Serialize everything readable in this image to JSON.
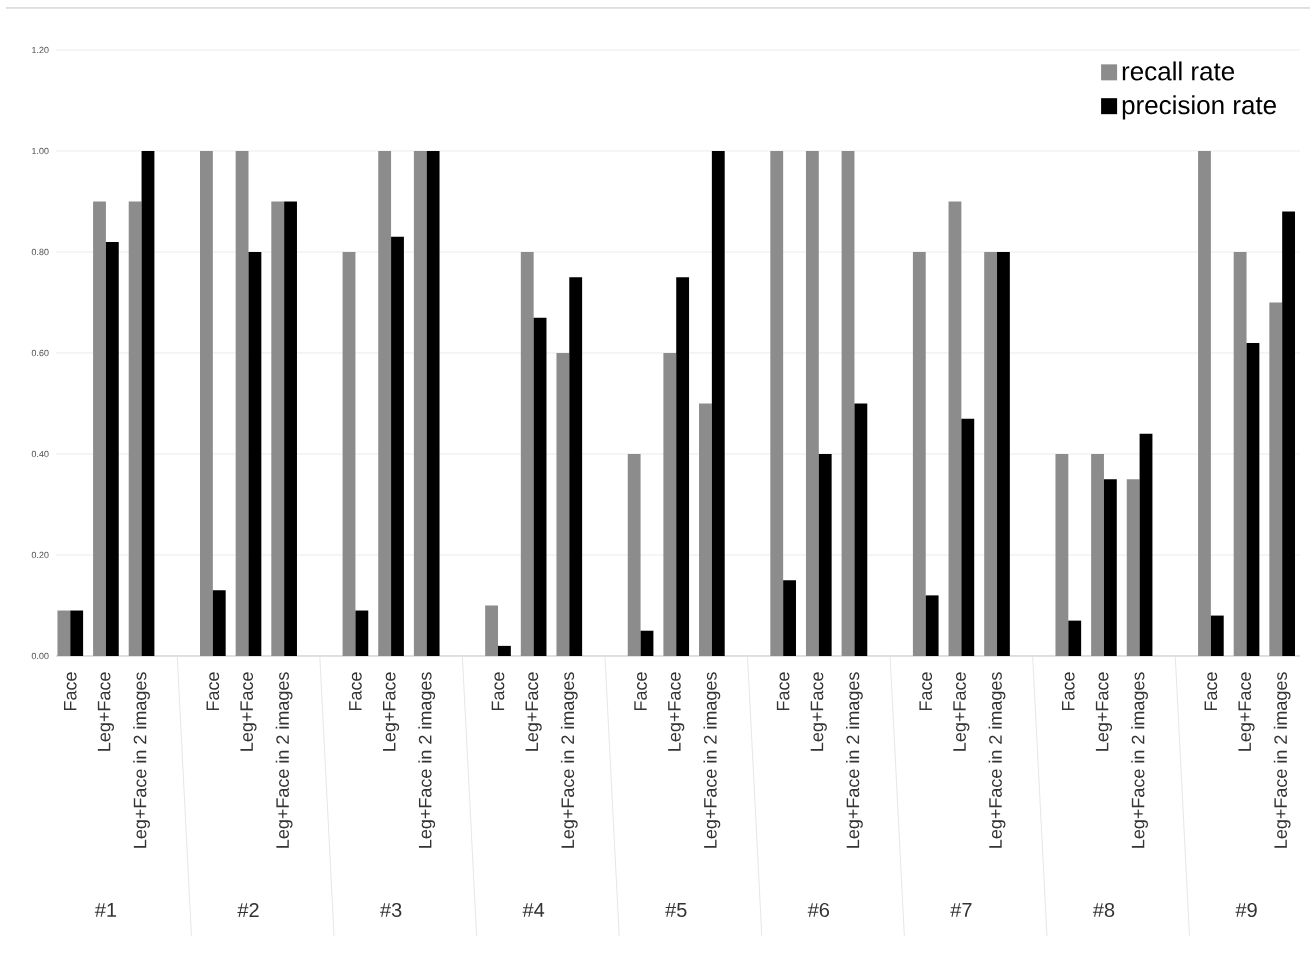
{
  "chart_data": {
    "type": "bar",
    "categories": [
      "Face",
      "Leg+Face",
      "Leg+Face in 2 images",
      "Face",
      "Leg+Face",
      "Leg+Face in 2 images",
      "Face",
      "Leg+Face",
      "Leg+Face in 2 images",
      "Face",
      "Leg+Face",
      "Leg+Face in 2 images",
      "Face",
      "Leg+Face",
      "Leg+Face in 2 images",
      "Face",
      "Leg+Face",
      "Leg+Face in 2 images",
      "Face",
      "Leg+Face",
      "Leg+Face in 2 images",
      "Face",
      "Leg+Face",
      "Leg+Face in 2 images",
      "Face",
      "Leg+Face",
      "Leg+Face in 2 images"
    ],
    "series": [
      {
        "name": "recall rate",
        "color": "#8c8c8c",
        "values": [
          0.09,
          0.9,
          0.9,
          1.0,
          1.0,
          0.9,
          0.8,
          1.0,
          1.0,
          0.1,
          0.8,
          0.6,
          0.4,
          0.6,
          0.5,
          1.0,
          1.0,
          1.0,
          0.8,
          0.9,
          0.8,
          0.4,
          0.4,
          0.35,
          1.0,
          0.8,
          0.7
        ]
      },
      {
        "name": "precision rate",
        "color": "#000000",
        "values": [
          0.09,
          0.82,
          1.0,
          0.13,
          0.8,
          0.9,
          0.09,
          0.83,
          1.0,
          0.02,
          0.67,
          0.75,
          0.05,
          0.75,
          1.0,
          0.15,
          0.4,
          0.5,
          0.12,
          0.47,
          0.8,
          0.07,
          0.35,
          0.44,
          0.08,
          0.62,
          0.88
        ]
      }
    ],
    "annotations": [
      "#1",
      "#2",
      "#3",
      "#4",
      "#5",
      "#6",
      "#7",
      "#8",
      "#9"
    ],
    "ylim": [
      0,
      1.2
    ],
    "yticks": [
      {
        "value": 0,
        "label": "0.00"
      },
      {
        "value": 0.2,
        "label": "0.20"
      },
      {
        "value": 0.4,
        "label": "0.40"
      },
      {
        "value": 0.6,
        "label": "0.60"
      },
      {
        "value": 0.8,
        "label": "0.80"
      },
      {
        "value": 1.0,
        "label": "1.00"
      },
      {
        "value": 1.2,
        "label": "1.20"
      }
    ],
    "grid": "y",
    "legend": "top right"
  }
}
